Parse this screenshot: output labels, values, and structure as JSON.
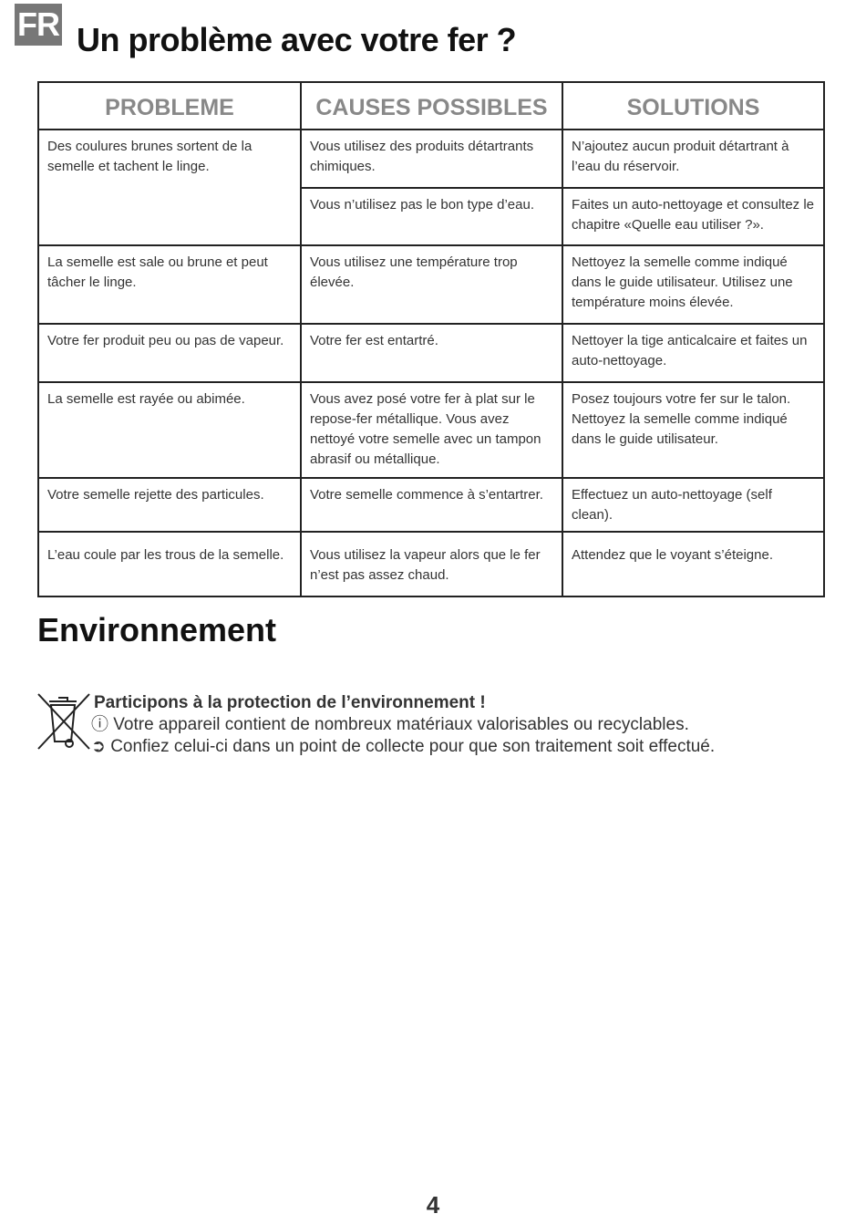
{
  "header": {
    "lang_badge": "FR",
    "title": "Un problème avec votre fer ?"
  },
  "table": {
    "headers": [
      "PROBLEME",
      "CAUSES POSSIBLES",
      "SOLUTIONS"
    ],
    "rows": [
      {
        "problem": "Des coulures brunes sortent de la semelle et tachent le linge.",
        "cause": "Vous utilisez des produits détartrants chimiques.",
        "solution": "N’ajoutez aucun produit détartrant à l’eau du réservoir."
      },
      {
        "cause": "Vous n’utilisez pas le bon type d’eau.",
        "solution": "Faites un auto-nettoyage et consultez le chapitre «Quelle eau utiliser ?»."
      },
      {
        "problem": "La semelle est sale ou brune et peut tâcher le linge.",
        "cause": "Vous utilisez une température trop élevée.",
        "solution": "Nettoyez la semelle comme indiqué dans le guide utilisateur. Utilisez une température moins élevée."
      },
      {
        "problem": "Votre fer produit peu ou pas de vapeur.",
        "cause": "Votre fer est entartré.",
        "solution": "Nettoyer la tige anticalcaire et faites un auto-nettoyage."
      },
      {
        "problem": "La semelle est rayée ou abimée.",
        "cause": "Vous avez posé votre fer à plat sur le repose-fer métallique. Vous avez nettoyé votre semelle avec un tampon abrasif ou métallique.",
        "solution": "Posez toujours votre fer sur le talon. Nettoyez la semelle comme indiqué dans le guide utilisateur."
      },
      {
        "problem": "Votre semelle rejette des particules.",
        "cause": "Votre semelle commence à s’entartrer.",
        "solution": "Effectuez un auto-nettoyage (self clean)."
      },
      {
        "problem": "L’eau coule par les trous de la semelle.",
        "cause": "Vous utilisez la vapeur alors que le fer n’est pas assez chaud.",
        "solution": "Attendez que le voyant s’éteigne."
      }
    ]
  },
  "environment": {
    "title": "Environnement",
    "subtitle": "Participons à la protection de l’environnement !",
    "line1": "ⓘ Votre appareil contient de nombreux matériaux valorisables ou recyclables.",
    "line2": "➲ Confiez celui-ci dans un point de collecte pour que son traitement soit effectué.",
    "icon": "crossed-out-wheelie-bin-icon"
  },
  "page_number": "4"
}
